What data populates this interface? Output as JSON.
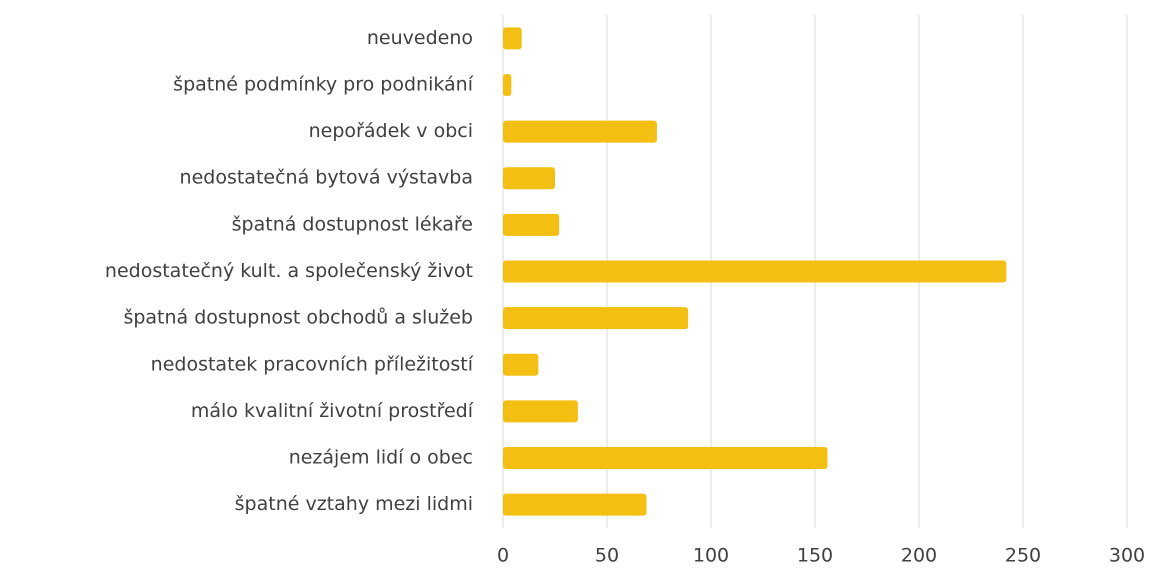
{
  "chart_data": {
    "type": "hbar",
    "categories": [
      "neuvedeno",
      "špatné podmínky pro podnikání",
      "nepořádek v obci",
      "nedostatečná bytová výstavba",
      "špatná dostupnost lékaře",
      "nedostatečný kult. a společenský život",
      "špatná dostupnost obchodů a služeb",
      "nedostatek pracovních příležitostí",
      "málo kvalitní životní prostředí",
      "nezájem lidí o obec",
      "špatné vztahy mezi lidmi"
    ],
    "values": [
      9,
      4,
      74,
      25,
      27,
      242,
      89,
      17,
      36,
      156,
      69
    ],
    "color": "#f2bf12",
    "xlim": [
      0,
      300
    ],
    "xticks": [
      0,
      50,
      100,
      150,
      200,
      250,
      300
    ],
    "grid": true
  }
}
